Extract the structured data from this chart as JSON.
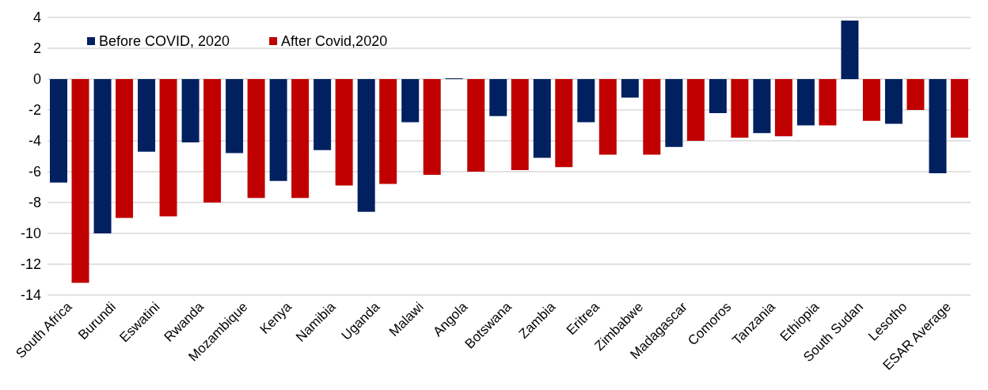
{
  "chart_data": {
    "type": "bar",
    "categories": [
      "South Africa",
      "Burundi",
      "Eswatini",
      "Rwanda",
      "Mozambique",
      "Kenya",
      "Namibia",
      "Uganda",
      "Malawi",
      "Angola",
      "Botswana",
      "Zambia",
      "Eritrea",
      "Zimbabwe",
      "Madagascar",
      "Comoros",
      "Tanzania",
      "Ethiopia",
      "South Sudan",
      "Lesotho",
      "ESAR Average"
    ],
    "series": [
      {
        "name": "Before COVID, 2020",
        "color": "#002060",
        "values": [
          -6.7,
          -10.0,
          -4.7,
          -4.1,
          -4.8,
          -6.6,
          -4.6,
          -8.6,
          -2.8,
          0.05,
          -2.4,
          -5.1,
          -2.8,
          -1.2,
          -4.4,
          -2.2,
          -3.5,
          -3.0,
          3.8,
          -2.9,
          -6.1
        ]
      },
      {
        "name": "After Covid,2020",
        "color": "#c00000",
        "values": [
          -13.2,
          -9.0,
          -8.9,
          -8.0,
          -7.7,
          -7.7,
          -6.9,
          -6.8,
          -6.2,
          -6.0,
          -5.9,
          -5.7,
          -4.9,
          -4.9,
          -4.0,
          -3.8,
          -3.7,
          -3.0,
          -2.7,
          -2.0,
          -3.8
        ]
      }
    ],
    "ylim": [
      -14,
      4
    ],
    "yticks": [
      -14,
      -12,
      -10,
      -8,
      -6,
      -4,
      -2,
      0,
      2,
      4
    ],
    "grid": true,
    "legend": "top left"
  }
}
